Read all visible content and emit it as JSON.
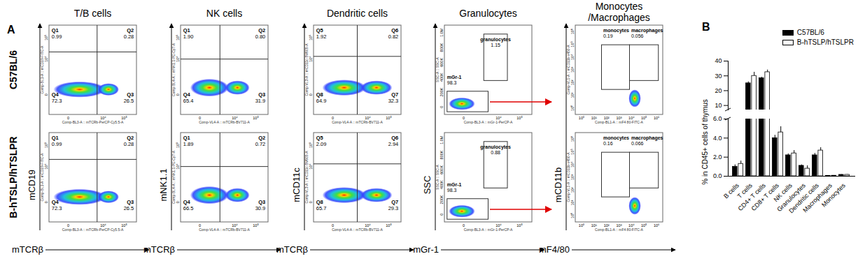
{
  "panel_a": {
    "label": "A",
    "row_labels": [
      "C57BL/6",
      "B-hTSLP/hTSLPR"
    ],
    "columns": [
      {
        "title": [
          "T/B cells"
        ],
        "x_label": "mTCRβ",
        "y_label": "mCD19",
        "x_channel": "Comp-BL3-A :: mTCRb-PerCP-Cy5.5-A",
        "y_channel": "Comp-BL1-A :: mCD19-FITC-A",
        "x_tick_labels": [
          "0",
          "10⁴",
          "10⁵"
        ],
        "y_tick_labels": [
          "0",
          "10⁴",
          "10⁵"
        ],
        "gates": [
          [
            {
              "name": "Q1",
              "value": "0.99"
            },
            {
              "name": "Q2",
              "value": "0.28"
            },
            {
              "name": "Q4",
              "value": "72.3"
            },
            {
              "name": "Q3",
              "value": "26.5"
            }
          ],
          [
            {
              "name": "Q1",
              "value": "0.99"
            },
            {
              "name": "Q2",
              "value": "0.28"
            },
            {
              "name": "Q4",
              "value": "72.3"
            },
            {
              "name": "Q3",
              "value": "26.5"
            }
          ]
        ]
      },
      {
        "title": [
          "NK cells"
        ],
        "x_label": "mTCRβ",
        "y_label": "mNK1.1",
        "x_channel": "Comp-VL4-A :: mTCRb-BV711-A",
        "y_channel": "Comp-BL4-A :: mNK1.1-PE-Cy7-A",
        "x_tick_labels": [
          "0",
          "10⁴",
          "10⁵"
        ],
        "y_tick_labels": [
          "0",
          "10⁴",
          "10⁵"
        ],
        "gates": [
          [
            {
              "name": "Q1",
              "value": "1.90"
            },
            {
              "name": "Q2",
              "value": "0.80"
            },
            {
              "name": "Q4",
              "value": "65.4"
            },
            {
              "name": "Q3",
              "value": "31.9"
            }
          ],
          [
            {
              "name": "Q1",
              "value": "1.89"
            },
            {
              "name": "Q2",
              "value": "0.72"
            },
            {
              "name": "Q4",
              "value": "66.5"
            },
            {
              "name": "Q3",
              "value": "30.9"
            }
          ]
        ]
      },
      {
        "title": [
          "Dendritic cells"
        ],
        "x_label": "mTCRβ",
        "y_label": "mCD11c",
        "x_channel": "Comp-VL4-A :: mTCRb-BV711-A",
        "y_channel": "Comp-VL3-A :: mCD11c-BV605-A",
        "x_tick_labels": [
          "0",
          "10⁴",
          "10⁵"
        ],
        "y_tick_labels": [
          "0",
          "10⁴",
          "10⁵"
        ],
        "gates": [
          [
            {
              "name": "Q5",
              "value": "1.92"
            },
            {
              "name": "Q6",
              "value": "0.82"
            },
            {
              "name": "Q8",
              "value": "64.9"
            },
            {
              "name": "Q7",
              "value": "32.3"
            }
          ],
          [
            {
              "name": "Q5",
              "value": "2.09"
            },
            {
              "name": "Q6",
              "value": "2.94"
            },
            {
              "name": "Q8",
              "value": "65.7"
            },
            {
              "name": "Q7",
              "value": "29.3"
            }
          ]
        ]
      },
      {
        "title": [
          "Granulocytes"
        ],
        "x_label": "mGr-1",
        "y_label": "SSC",
        "x_channel": "Comp-BL3-A :: mGr-1-PerCP-A",
        "y_channel": "SSC-A :: SSC-A",
        "x_tick_labels": [
          "0",
          "10⁴",
          "10⁵"
        ],
        "y_tick_labels": [
          "0",
          "200K",
          "400K",
          "600K",
          "800K",
          "1.0M"
        ],
        "gates": [
          [
            {
              "name": "granulocytes",
              "value": "1.15"
            },
            {
              "name": "mGr-1",
              "value": "98.3"
            }
          ],
          [
            {
              "name": "granulocytes",
              "value": "0.88"
            },
            {
              "name": "mGr-1",
              "value": "98.3"
            }
          ]
        ]
      },
      {
        "title": [
          "Monocytes",
          "/Macrophages"
        ],
        "x_label": "mF4/80",
        "y_label": "mCD11b",
        "x_channel": "Comp-BL1-A :: mF4 80-FITC-A",
        "y_channel": "Comp-VL1-A :: mCD11b-v450-A",
        "x_tick_labels": [
          "10⁰",
          "10¹",
          "10²",
          "10³",
          "10⁴",
          "10⁵",
          "10⁶"
        ],
        "y_tick_labels": [
          "10⁰",
          "10¹",
          "10²",
          "10³",
          "10⁴",
          "10⁵",
          "10⁶"
        ],
        "gates": [
          [
            {
              "name": "monocytes",
              "value": "0.19"
            },
            {
              "name": "macrophages",
              "value": "0.056"
            }
          ],
          [
            {
              "name": "monocytes",
              "value": "0.16"
            },
            {
              "name": "macrophages",
              "value": "0.066"
            }
          ]
        ]
      }
    ]
  },
  "chart_data": {
    "type": "bar",
    "panel_label": "B",
    "ylabel": "% in CD45+ cells of thymus",
    "categories": [
      "B cells",
      "T cells",
      "CD4+ T cells",
      "CD8+ T cells",
      "NK cells",
      "Granulocytes",
      "Dendritic cells",
      "Macrophages",
      "Monocytes"
    ],
    "series": [
      {
        "name": "C57BL/6",
        "color": "#000000",
        "values": [
          1.0,
          25,
          28.5,
          4.0,
          2.2,
          1.1,
          2.2,
          0.05,
          0.15
        ],
        "errors": [
          0.2,
          1.0,
          0.7,
          0.3,
          0.15,
          0.1,
          0.2,
          0.01,
          0.03
        ]
      },
      {
        "name": "B-hTSLP/hTSLPR",
        "color": "#ffffff",
        "values": [
          1.3,
          30,
          32.5,
          4.6,
          2.4,
          0.8,
          2.7,
          0.06,
          0.15
        ],
        "errors": [
          0.3,
          2.5,
          1.5,
          0.6,
          0.3,
          0.3,
          0.3,
          0.01,
          0.03
        ]
      }
    ],
    "segments": [
      {
        "ylim": [
          7,
          40
        ],
        "yticks": [
          10,
          20,
          30,
          40
        ]
      },
      {
        "ylim": [
          0,
          6
        ],
        "yticks": [
          0,
          2,
          4,
          6
        ]
      }
    ],
    "legend": "top-right"
  }
}
